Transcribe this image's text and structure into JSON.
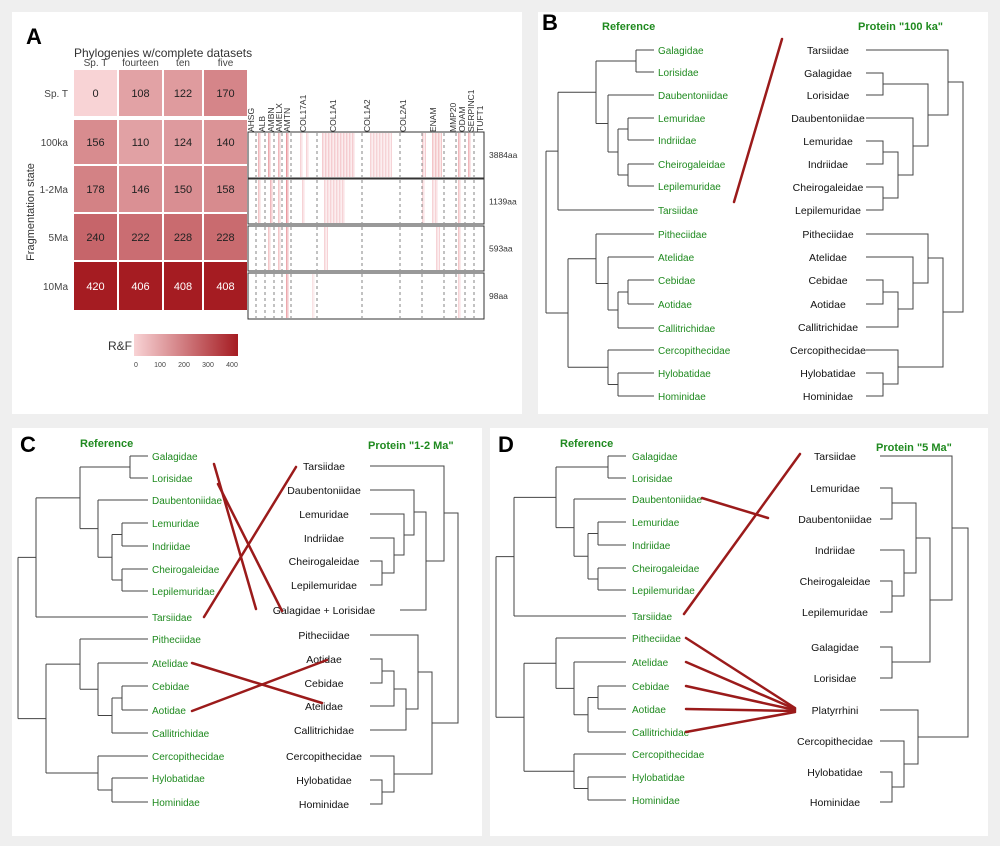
{
  "panel_letters": {
    "a": "A",
    "b": "B",
    "c": "C",
    "d": "D"
  },
  "colors": {
    "green": "#1f8a1f",
    "red": "#9b1b1b",
    "line": "#333333"
  },
  "panel_a": {
    "title": "Phylogenies w/complete datasets",
    "ylabel": "Fragmentation state",
    "legend_title": "R&F",
    "legend_ticks": [
      "0",
      "100",
      "200",
      "300",
      "400"
    ]
  },
  "chart_data": {
    "type": "heatmap",
    "title": "Phylogenies w/complete datasets",
    "xlabel": "",
    "ylabel": "Fragmentation state",
    "columns": [
      "Sp. T",
      "fourteen",
      "ten",
      "five"
    ],
    "rows": [
      "Sp. T",
      "100ka",
      "1-2Ma",
      "5Ma",
      "10Ma"
    ],
    "values": [
      [
        0,
        108,
        122,
        170
      ],
      [
        156,
        110,
        124,
        140
      ],
      [
        178,
        146,
        150,
        158
      ],
      [
        240,
        222,
        228,
        228
      ],
      [
        420,
        406,
        408,
        408
      ]
    ],
    "scale": {
      "min": 0,
      "max": 400,
      "ticks": [
        0,
        100,
        200,
        300,
        400
      ]
    },
    "legend_title": "R&F"
  },
  "genes": {
    "labels": [
      "AHSG",
      "ALB",
      "AMBN",
      "AMELX",
      "AMTN",
      "COL17A1",
      "COL1A1",
      "COL1A2",
      "COL2A1",
      "ENAM",
      "MMP20",
      "ODAM",
      "SERPINC1",
      "TUFT1"
    ],
    "lengths": [
      "3884aa",
      "1139aa",
      "593aa",
      "98aa"
    ]
  },
  "trees": {
    "reference_header": "Reference",
    "reference_taxa": [
      "Galagidae",
      "Lorisidae",
      "Daubentoniidae",
      "Lemuridae",
      "Indriidae",
      "Cheirogaleidae",
      "Lepilemuridae",
      "Tarsiidae",
      "Pitheciidae",
      "Atelidae",
      "Cebidae",
      "Aotidae",
      "Callitrichidae",
      "Cercopithecidae",
      "Hylobatidae",
      "Hominidae"
    ],
    "b": {
      "header": "Protein \"100 ka\"",
      "taxa": [
        "Tarsiidae",
        "Galagidae",
        "Lorisidae",
        "Daubentoniidae",
        "Lemuridae",
        "Indriidae",
        "Cheirogaleidae",
        "Lepilemuridae",
        "Pitheciidae",
        "Atelidae",
        "Cebidae",
        "Aotidae",
        "Callitrichidae",
        "Cercopithecidae",
        "Hylobatidae",
        "Hominidae"
      ]
    },
    "c": {
      "header": "Protein \"1-2 Ma\"",
      "taxa": [
        "Tarsiidae",
        "Daubentoniidae",
        "Lemuridae",
        "Indriidae",
        "Cheirogaleidae",
        "Lepilemuridae",
        "Galagidae + Lorisidae",
        "Pitheciidae",
        "Aotidae",
        "Cebidae",
        "Atelidae",
        "Callitrichidae",
        "Cercopithecidae",
        "Hylobatidae",
        "Hominidae"
      ]
    },
    "d": {
      "header": "Protein \"5 Ma\"",
      "taxa": [
        "Tarsiidae",
        "Lemuridae",
        "Daubentoniidae",
        "Indriidae",
        "Cheirogaleidae",
        "Lepilemuridae",
        "Galagidae",
        "Lorisidae",
        "Platyrrhini",
        "Cercopithecidae",
        "Hylobatidae",
        "Hominidae"
      ]
    }
  }
}
